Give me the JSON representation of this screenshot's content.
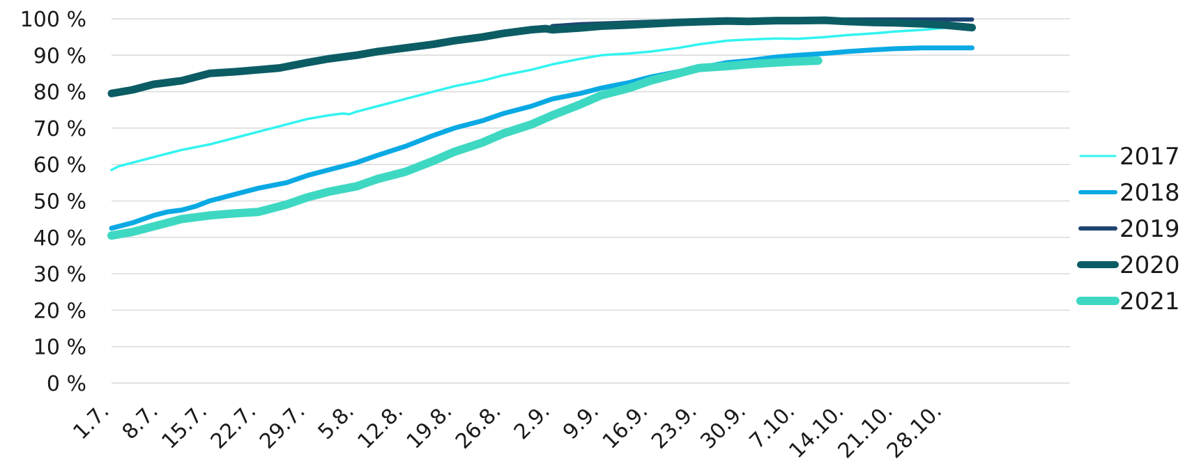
{
  "chart_data": {
    "type": "line",
    "title": "",
    "xlabel": "",
    "ylabel": "",
    "ylim": [
      0,
      100
    ],
    "grid": true,
    "legend_position": "right",
    "y_ticks": [
      "0 %",
      "10 %",
      "20 %",
      "30 %",
      "40 %",
      "50 %",
      "60 %",
      "70 %",
      "80 %",
      "90 %",
      "100 %"
    ],
    "x_ticks": [
      "1.7.",
      "8.7.",
      "15.7.",
      "22.7.",
      "29.7.",
      "5.8.",
      "12.8.",
      "19.8.",
      "26.8.",
      "2.9.",
      "9.9.",
      "16.9.",
      "23.9.",
      "30.9.",
      "7.10.",
      "14.10.",
      "21.10.",
      "28.10."
    ],
    "x_days": [
      0,
      7,
      14,
      21,
      28,
      35,
      42,
      49,
      56,
      63,
      70,
      77,
      84,
      91,
      98,
      105,
      112,
      119
    ],
    "series": [
      {
        "name": "2017",
        "color": "#33f3f0",
        "x": [
          0,
          1,
          3,
          7,
          10,
          14,
          18,
          21,
          25,
          28,
          31,
          33,
          34,
          35,
          38,
          42,
          46,
          49,
          53,
          56,
          60,
          63,
          67,
          70,
          74,
          77,
          81,
          84,
          88,
          91,
          95,
          98,
          102,
          105,
          109,
          112,
          116,
          119,
          123
        ],
        "y": [
          58.5,
          59.5,
          60.5,
          62.5,
          64,
          65.5,
          67.5,
          69,
          71,
          72.5,
          73.5,
          74,
          73.8,
          74.5,
          76,
          78,
          80,
          81.5,
          83,
          84.5,
          86,
          87.5,
          89,
          90,
          90.5,
          91,
          92,
          93,
          94,
          94.3,
          94.6,
          94.5,
          95,
          95.5,
          96,
          96.5,
          97,
          97.5,
          98
        ]
      },
      {
        "name": "2018",
        "color": "#0aa9e3",
        "x": [
          0,
          3,
          6,
          8,
          10,
          12,
          14,
          18,
          21,
          25,
          28,
          31,
          35,
          38,
          42,
          46,
          49,
          53,
          56,
          60,
          63,
          67,
          70,
          74,
          77,
          81,
          84,
          88,
          91,
          95,
          98,
          102,
          105,
          109,
          112,
          116,
          119,
          123
        ],
        "y": [
          42.5,
          44,
          46,
          47,
          47.5,
          48.5,
          50,
          52,
          53.5,
          55,
          57,
          58.5,
          60.5,
          62.5,
          65,
          68,
          70,
          72,
          74,
          76,
          78,
          79.5,
          81,
          82.5,
          84,
          85.5,
          86.5,
          88,
          88.5,
          89.5,
          90,
          90.5,
          91,
          91.5,
          91.8,
          92,
          92,
          92
        ]
      },
      {
        "name": "2019",
        "color": "#1e4472",
        "x": [
          63,
          67,
          70,
          74,
          77,
          81,
          84,
          88,
          91,
          95,
          98,
          102,
          105,
          109,
          112,
          116,
          119,
          123
        ],
        "y": [
          98,
          98.5,
          98.7,
          99,
          99.2,
          99.4,
          99.5,
          99.6,
          99.7,
          99.8,
          99.8,
          99.8,
          99.8,
          99.8,
          99.8,
          99.8,
          99.8,
          99.8
        ]
      },
      {
        "name": "2020",
        "color": "#0c5c64",
        "x": [
          0,
          3,
          6,
          8,
          10,
          12,
          14,
          18,
          21,
          24,
          28,
          31,
          35,
          38,
          42,
          46,
          49,
          53,
          56,
          60,
          62,
          63,
          67,
          70,
          74,
          77,
          81,
          84,
          88,
          91,
          95,
          98,
          102,
          105,
          109,
          112,
          116,
          119,
          123
        ],
        "y": [
          79.5,
          80.5,
          82,
          82.5,
          83,
          84,
          85,
          85.5,
          86,
          86.5,
          88,
          89,
          90,
          91,
          92,
          93,
          94,
          95,
          96,
          97,
          97.3,
          97,
          97.5,
          98,
          98.3,
          98.6,
          99,
          99.2,
          99.4,
          99.3,
          99.5,
          99.5,
          99.6,
          99.3,
          99,
          98.9,
          98.6,
          98.3,
          97.6
        ]
      },
      {
        "name": "2021",
        "color": "#3ed8c2",
        "x": [
          0,
          3,
          7,
          10,
          14,
          17,
          21,
          25,
          28,
          31,
          35,
          38,
          42,
          46,
          49,
          53,
          56,
          60,
          63,
          67,
          70,
          74,
          77,
          81,
          84,
          88,
          91,
          95,
          98,
          101
        ],
        "y": [
          40.5,
          41.5,
          43.5,
          45,
          46,
          46.5,
          47,
          49,
          51,
          52.5,
          54,
          56,
          58,
          61,
          63.5,
          66,
          68.5,
          71,
          73.5,
          76.5,
          79,
          81,
          83,
          85,
          86.5,
          87,
          87.5,
          88,
          88.3,
          88.5
        ]
      }
    ]
  },
  "legend": {
    "items": [
      {
        "label": "2017",
        "color": "#33f3f0",
        "width": 3
      },
      {
        "label": "2018",
        "color": "#0aa9e3",
        "width": 6
      },
      {
        "label": "2019",
        "color": "#1e4472",
        "width": 6
      },
      {
        "label": "2020",
        "color": "#0c5c64",
        "width": 10
      },
      {
        "label": "2021",
        "color": "#3ed8c2",
        "width": 12
      }
    ]
  }
}
